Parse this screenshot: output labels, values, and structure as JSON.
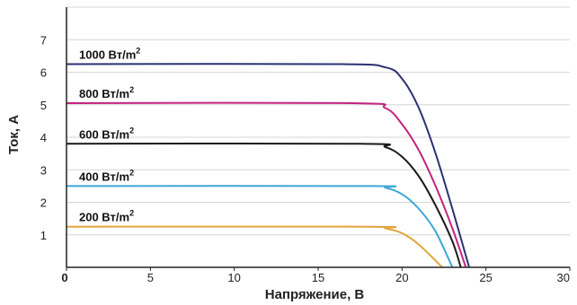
{
  "chart_data": {
    "type": "line",
    "xlabel": "Напряжение, В",
    "ylabel": "Ток, А",
    "xlim": [
      0,
      30
    ],
    "ylim": [
      0,
      8
    ],
    "xticks": [
      0,
      5,
      10,
      15,
      20,
      25,
      30
    ],
    "yticks": [
      1,
      2,
      3,
      4,
      5,
      6,
      7
    ],
    "grid": "horizontal",
    "series": [
      {
        "name": "1000 Вт/m",
        "superscript": "2",
        "color": "#2b3173",
        "x": [
          0,
          16,
          19,
          20,
          21,
          22,
          23,
          24
        ],
        "y": [
          6.25,
          6.25,
          6.15,
          5.8,
          4.9,
          3.5,
          1.8,
          0
        ]
      },
      {
        "name": "800 Вт/m",
        "superscript": "2",
        "color": "#c4237e",
        "x": [
          0,
          17,
          19,
          20,
          21,
          22,
          23,
          23.8
        ],
        "y": [
          5.05,
          5.05,
          4.9,
          4.4,
          3.6,
          2.5,
          1.2,
          0
        ]
      },
      {
        "name": "600 Вт/m",
        "superscript": "2",
        "color": "#1a1a1a",
        "x": [
          0,
          17.5,
          19,
          20,
          21,
          22,
          23,
          23.5
        ],
        "y": [
          3.8,
          3.8,
          3.7,
          3.4,
          2.8,
          1.9,
          0.8,
          0
        ]
      },
      {
        "name": "400 Вт/m",
        "superscript": "2",
        "color": "#3ca6d8",
        "x": [
          0,
          18,
          19,
          20,
          21,
          22,
          23
        ],
        "y": [
          2.5,
          2.5,
          2.45,
          2.25,
          1.8,
          1.1,
          0
        ]
      },
      {
        "name": "200 Вт/m",
        "superscript": "2",
        "color": "#e3a53a",
        "x": [
          0,
          18,
          19,
          20,
          21,
          22.4
        ],
        "y": [
          1.25,
          1.25,
          1.2,
          1.05,
          0.7,
          0
        ]
      }
    ]
  }
}
